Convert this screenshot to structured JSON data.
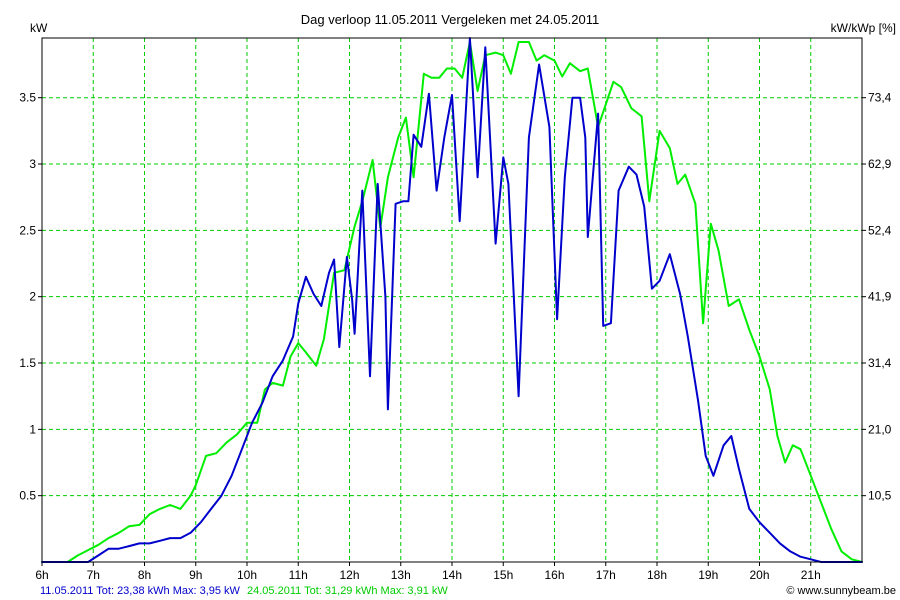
{
  "chart_data": {
    "type": "line",
    "title": "Dag  verloop 11.05.2011   Vergeleken met 24.05.2011",
    "ylabel_left": "kW",
    "ylabel_right": "kW/kWp [%]",
    "xlim": [
      6,
      22
    ],
    "ylim": [
      0,
      3.95
    ],
    "x_ticks": [
      {
        "x": 6,
        "label": "6h"
      },
      {
        "x": 7,
        "label": "7h"
      },
      {
        "x": 8,
        "label": "8h"
      },
      {
        "x": 9,
        "label": "9h"
      },
      {
        "x": 10,
        "label": "10h"
      },
      {
        "x": 11,
        "label": "11h"
      },
      {
        "x": 12,
        "label": "12h"
      },
      {
        "x": 13,
        "label": "13h"
      },
      {
        "x": 14,
        "label": "14h"
      },
      {
        "x": 15,
        "label": "15h"
      },
      {
        "x": 16,
        "label": "16h"
      },
      {
        "x": 17,
        "label": "17h"
      },
      {
        "x": 18,
        "label": "18h"
      },
      {
        "x": 19,
        "label": "19h"
      },
      {
        "x": 20,
        "label": "20h"
      },
      {
        "x": 21,
        "label": "21h"
      }
    ],
    "y_ticks_left": [
      {
        "v": 0.5,
        "label": "0.5"
      },
      {
        "v": 1,
        "label": "1"
      },
      {
        "v": 1.5,
        "label": "1.5"
      },
      {
        "v": 2,
        "label": "2"
      },
      {
        "v": 2.5,
        "label": "2.5"
      },
      {
        "v": 3,
        "label": "3"
      },
      {
        "v": 3.5,
        "label": "3.5"
      }
    ],
    "y_ticks_right": [
      {
        "v": 0.5,
        "label": "10,5"
      },
      {
        "v": 1,
        "label": "21,0"
      },
      {
        "v": 1.5,
        "label": "31,4"
      },
      {
        "v": 2,
        "label": "41,9"
      },
      {
        "v": 2.5,
        "label": "52,4"
      },
      {
        "v": 3,
        "label": "62,9"
      },
      {
        "v": 3.5,
        "label": "73,4"
      }
    ],
    "grid": true,
    "series": [
      {
        "name": "11.05.2011",
        "color": "#0000cc",
        "points": [
          [
            6.0,
            0.0
          ],
          [
            6.9,
            0.0
          ],
          [
            7.1,
            0.05
          ],
          [
            7.3,
            0.1
          ],
          [
            7.5,
            0.1
          ],
          [
            7.7,
            0.12
          ],
          [
            7.9,
            0.14
          ],
          [
            8.1,
            0.14
          ],
          [
            8.3,
            0.16
          ],
          [
            8.5,
            0.18
          ],
          [
            8.7,
            0.18
          ],
          [
            8.9,
            0.22
          ],
          [
            9.1,
            0.3
          ],
          [
            9.3,
            0.4
          ],
          [
            9.5,
            0.5
          ],
          [
            9.7,
            0.65
          ],
          [
            9.9,
            0.85
          ],
          [
            10.1,
            1.05
          ],
          [
            10.3,
            1.2
          ],
          [
            10.5,
            1.4
          ],
          [
            10.7,
            1.52
          ],
          [
            10.9,
            1.7
          ],
          [
            11.0,
            1.95
          ],
          [
            11.15,
            2.15
          ],
          [
            11.3,
            2.02
          ],
          [
            11.45,
            1.93
          ],
          [
            11.6,
            2.18
          ],
          [
            11.7,
            2.28
          ],
          [
            11.8,
            1.62
          ],
          [
            11.95,
            2.3
          ],
          [
            12.05,
            1.98
          ],
          [
            12.1,
            1.72
          ],
          [
            12.25,
            2.8
          ],
          [
            12.4,
            1.4
          ],
          [
            12.55,
            2.85
          ],
          [
            12.7,
            2.0
          ],
          [
            12.75,
            1.15
          ],
          [
            12.9,
            2.7
          ],
          [
            13.05,
            2.72
          ],
          [
            13.15,
            2.72
          ],
          [
            13.25,
            3.22
          ],
          [
            13.4,
            3.13
          ],
          [
            13.55,
            3.53
          ],
          [
            13.7,
            2.8
          ],
          [
            13.85,
            3.2
          ],
          [
            14.0,
            3.52
          ],
          [
            14.15,
            2.57
          ],
          [
            14.35,
            3.95
          ],
          [
            14.5,
            2.9
          ],
          [
            14.65,
            3.88
          ],
          [
            14.85,
            2.4
          ],
          [
            15.0,
            3.05
          ],
          [
            15.1,
            2.85
          ],
          [
            15.3,
            1.25
          ],
          [
            15.5,
            3.2
          ],
          [
            15.7,
            3.75
          ],
          [
            15.9,
            3.28
          ],
          [
            16.05,
            1.83
          ],
          [
            16.2,
            2.9
          ],
          [
            16.35,
            3.5
          ],
          [
            16.5,
            3.5
          ],
          [
            16.6,
            3.2
          ],
          [
            16.65,
            2.45
          ],
          [
            16.85,
            3.38
          ],
          [
            16.95,
            1.78
          ],
          [
            17.1,
            1.8
          ],
          [
            17.25,
            2.8
          ],
          [
            17.45,
            2.98
          ],
          [
            17.6,
            2.92
          ],
          [
            17.75,
            2.68
          ],
          [
            17.9,
            2.06
          ],
          [
            18.05,
            2.12
          ],
          [
            18.25,
            2.32
          ],
          [
            18.45,
            2.02
          ],
          [
            18.6,
            1.7
          ],
          [
            18.8,
            1.22
          ],
          [
            18.95,
            0.8
          ],
          [
            19.1,
            0.65
          ],
          [
            19.3,
            0.88
          ],
          [
            19.45,
            0.95
          ],
          [
            19.6,
            0.7
          ],
          [
            19.8,
            0.4
          ],
          [
            20.0,
            0.3
          ],
          [
            20.2,
            0.22
          ],
          [
            20.4,
            0.14
          ],
          [
            20.6,
            0.08
          ],
          [
            20.8,
            0.04
          ],
          [
            21.0,
            0.02
          ],
          [
            21.2,
            0.0
          ],
          [
            22.0,
            0.0
          ]
        ]
      },
      {
        "name": "24.05.2011",
        "color": "#00ee00",
        "points": [
          [
            6.0,
            0.0
          ],
          [
            6.5,
            0.0
          ],
          [
            6.7,
            0.05
          ],
          [
            6.9,
            0.09
          ],
          [
            7.1,
            0.13
          ],
          [
            7.3,
            0.18
          ],
          [
            7.5,
            0.22
          ],
          [
            7.7,
            0.27
          ],
          [
            7.9,
            0.28
          ],
          [
            8.1,
            0.36
          ],
          [
            8.3,
            0.4
          ],
          [
            8.5,
            0.43
          ],
          [
            8.7,
            0.4
          ],
          [
            8.9,
            0.5
          ],
          [
            9.0,
            0.58
          ],
          [
            9.2,
            0.8
          ],
          [
            9.4,
            0.82
          ],
          [
            9.6,
            0.9
          ],
          [
            9.8,
            0.96
          ],
          [
            10.0,
            1.05
          ],
          [
            10.2,
            1.05
          ],
          [
            10.35,
            1.3
          ],
          [
            10.5,
            1.35
          ],
          [
            10.7,
            1.33
          ],
          [
            10.85,
            1.55
          ],
          [
            11.0,
            1.65
          ],
          [
            11.15,
            1.58
          ],
          [
            11.35,
            1.48
          ],
          [
            11.5,
            1.68
          ],
          [
            11.7,
            2.18
          ],
          [
            11.9,
            2.2
          ],
          [
            12.1,
            2.53
          ],
          [
            12.25,
            2.72
          ],
          [
            12.45,
            3.03
          ],
          [
            12.6,
            2.52
          ],
          [
            12.75,
            2.9
          ],
          [
            12.95,
            3.2
          ],
          [
            13.1,
            3.35
          ],
          [
            13.25,
            2.9
          ],
          [
            13.45,
            3.68
          ],
          [
            13.6,
            3.65
          ],
          [
            13.75,
            3.65
          ],
          [
            13.9,
            3.72
          ],
          [
            14.05,
            3.72
          ],
          [
            14.2,
            3.65
          ],
          [
            14.35,
            3.92
          ],
          [
            14.5,
            3.55
          ],
          [
            14.65,
            3.82
          ],
          [
            14.85,
            3.84
          ],
          [
            15.0,
            3.82
          ],
          [
            15.15,
            3.68
          ],
          [
            15.3,
            3.92
          ],
          [
            15.5,
            3.92
          ],
          [
            15.65,
            3.78
          ],
          [
            15.8,
            3.82
          ],
          [
            16.0,
            3.78
          ],
          [
            16.15,
            3.66
          ],
          [
            16.3,
            3.76
          ],
          [
            16.5,
            3.7
          ],
          [
            16.65,
            3.72
          ],
          [
            16.85,
            3.28
          ],
          [
            17.0,
            3.45
          ],
          [
            17.15,
            3.62
          ],
          [
            17.3,
            3.58
          ],
          [
            17.5,
            3.42
          ],
          [
            17.7,
            3.36
          ],
          [
            17.85,
            2.72
          ],
          [
            18.05,
            3.25
          ],
          [
            18.25,
            3.12
          ],
          [
            18.4,
            2.85
          ],
          [
            18.55,
            2.92
          ],
          [
            18.75,
            2.7
          ],
          [
            18.9,
            1.8
          ],
          [
            19.05,
            2.55
          ],
          [
            19.2,
            2.35
          ],
          [
            19.4,
            1.93
          ],
          [
            19.6,
            1.98
          ],
          [
            19.8,
            1.75
          ],
          [
            20.0,
            1.55
          ],
          [
            20.2,
            1.3
          ],
          [
            20.35,
            0.95
          ],
          [
            20.5,
            0.75
          ],
          [
            20.65,
            0.88
          ],
          [
            20.8,
            0.85
          ],
          [
            21.0,
            0.65
          ],
          [
            21.2,
            0.45
          ],
          [
            21.4,
            0.25
          ],
          [
            21.6,
            0.08
          ],
          [
            21.8,
            0.02
          ],
          [
            22.0,
            0.0
          ]
        ]
      }
    ],
    "footer": {
      "s1_label": "11.05.2011 Tot: 23,38 kWh Max: 3,95 kW",
      "s2_label": "24.05.2011 Tot: 31,29 kWh Max: 3,91 kW",
      "credit": "© www.sunnybeam.be"
    }
  }
}
